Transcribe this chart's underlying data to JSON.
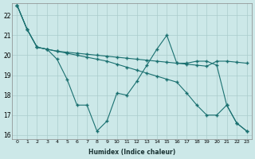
{
  "xlabel": "Humidex (Indice chaleur)",
  "background_color": "#cce8e8",
  "grid_color": "#aacccc",
  "line_color": "#1a7070",
  "xlim": [
    -0.5,
    23.5
  ],
  "ylim": [
    15.8,
    22.6
  ],
  "yticks": [
    16,
    17,
    18,
    19,
    20,
    21,
    22
  ],
  "xticks": [
    0,
    1,
    2,
    3,
    4,
    5,
    6,
    7,
    8,
    9,
    10,
    11,
    12,
    13,
    14,
    15,
    16,
    17,
    18,
    19,
    20,
    21,
    22,
    23
  ],
  "series": [
    [
      22.5,
      21.3,
      20.4,
      20.3,
      19.8,
      18.8,
      17.5,
      17.5,
      16.2,
      16.7,
      18.1,
      18.0,
      18.7,
      19.5,
      20.3,
      21.0,
      19.6,
      19.6,
      19.7,
      19.7,
      19.5,
      17.5,
      16.6,
      16.2
    ],
    [
      22.5,
      21.3,
      20.4,
      20.3,
      20.2,
      20.15,
      20.1,
      20.05,
      20.0,
      19.95,
      19.9,
      19.85,
      19.8,
      19.75,
      19.7,
      19.65,
      19.6,
      19.55,
      19.5,
      19.45,
      19.7,
      19.7,
      19.65,
      19.6
    ],
    [
      22.5,
      21.3,
      20.4,
      20.3,
      20.2,
      20.1,
      20.0,
      19.9,
      19.8,
      19.7,
      19.55,
      19.4,
      19.25,
      19.1,
      18.95,
      18.8,
      18.65,
      18.1,
      17.5,
      17.0,
      17.0,
      17.5,
      16.6,
      16.2
    ]
  ]
}
